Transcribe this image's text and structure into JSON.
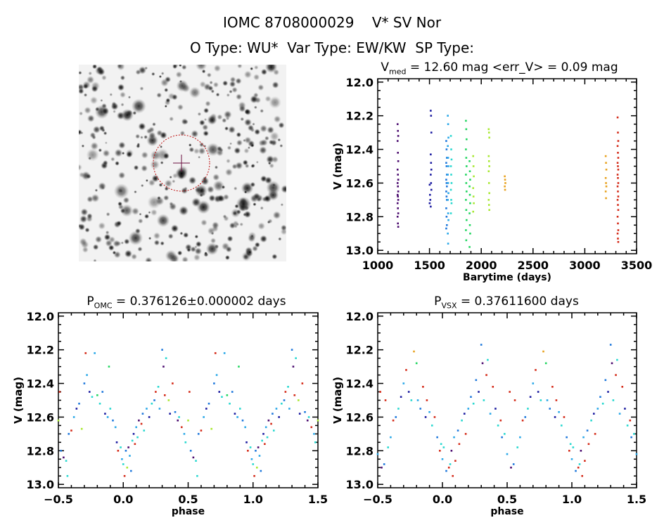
{
  "header": {
    "line1": "IOMC 8708000029    V* SV Nor",
    "line2": "O Type: WU*  Var Type: EW/KW  SP Type:"
  },
  "colors": [
    "#4a0a6e",
    "#1a1aa0",
    "#1f78dc",
    "#2aa8e8",
    "#28d8d0",
    "#22d660",
    "#a8e832",
    "#e8a21e",
    "#d42a18"
  ],
  "chart_data": [
    {
      "type": "image",
      "panel": "finding-chart",
      "marker": "circle-and-cross",
      "marker_color": "#c01010"
    },
    {
      "type": "scatter",
      "title_main": "V",
      "title_sub": "med",
      "title_rest": " = 12.60 mag <err_V> = 0.09 mag",
      "xlabel": "Barytime (days)",
      "ylabel": "V (mag)",
      "xlim": [
        1000,
        3500
      ],
      "ylim": [
        13.02,
        11.98
      ],
      "xticks": [
        1000,
        1500,
        2000,
        2500,
        3000,
        3500
      ],
      "xtick_labels": [
        "1000",
        "1500",
        "2000",
        "2500",
        "3000",
        "3500"
      ],
      "yticks": [
        12.0,
        12.2,
        12.4,
        12.6,
        12.8,
        13.0
      ],
      "ytick_labels": [
        "12.0",
        "12.2",
        "12.4",
        "12.6",
        "12.8",
        "13.0"
      ],
      "groups": [
        {
          "t": 1195,
          "c": 0,
          "v": [
            12.25,
            12.29,
            12.32,
            12.35,
            12.42,
            12.47,
            12.52,
            12.55,
            12.58,
            12.6,
            12.62,
            12.65,
            12.67,
            12.68,
            12.7,
            12.72,
            12.75,
            12.78,
            12.8,
            12.84,
            12.86
          ]
        },
        {
          "t": 1505,
          "c": 1,
          "v": [
            12.61,
            12.67,
            12.7,
            12.72
          ]
        },
        {
          "t": 1515,
          "c": 1,
          "v": [
            12.17,
            12.2,
            12.3,
            12.43,
            12.48,
            12.52,
            12.55,
            12.6,
            12.64,
            12.74
          ]
        },
        {
          "t": 1665,
          "c": 2,
          "v": [
            12.35,
            12.4,
            12.45,
            12.48,
            12.5,
            12.55,
            12.58,
            12.6,
            12.62,
            12.65,
            12.68,
            12.7,
            12.75,
            12.8,
            12.85,
            12.87
          ]
        },
        {
          "t": 1680,
          "c": 3,
          "v": [
            12.2,
            12.25,
            12.33,
            12.38,
            12.45,
            12.5,
            12.55,
            12.6,
            12.66,
            12.7,
            12.78,
            12.82,
            12.9,
            12.96
          ]
        },
        {
          "t": 1710,
          "c": 4,
          "v": [
            12.32,
            12.4,
            12.46,
            12.5,
            12.55,
            12.6,
            12.64,
            12.7,
            12.72,
            12.78
          ]
        },
        {
          "t": 1855,
          "c": 5,
          "v": [
            12.23,
            12.28,
            12.34,
            12.4,
            12.45,
            12.5,
            12.55,
            12.6,
            12.65,
            12.7,
            12.76,
            12.82,
            12.88,
            12.94
          ]
        },
        {
          "t": 1890,
          "c": 5,
          "v": [
            12.47,
            12.53,
            12.58,
            12.62,
            12.67,
            12.72,
            12.78,
            12.85,
            12.9,
            12.98
          ]
        },
        {
          "t": 1925,
          "c": 6,
          "v": [
            12.44,
            12.5,
            12.56,
            12.63,
            12.68,
            12.72,
            12.77
          ]
        },
        {
          "t": 2075,
          "c": 6,
          "v": [
            12.28,
            12.3,
            12.33,
            12.44,
            12.47,
            12.5,
            12.53,
            12.6,
            12.66,
            12.7,
            12.73,
            12.76
          ]
        },
        {
          "t": 2230,
          "c": 7,
          "v": [
            12.56,
            12.58,
            12.6,
            12.62,
            12.64
          ]
        },
        {
          "t": 3205,
          "c": 7,
          "v": [
            12.44,
            12.48,
            12.52,
            12.57,
            12.6,
            12.62,
            12.65,
            12.69
          ]
        },
        {
          "t": 3320,
          "c": 8,
          "v": [
            12.21,
            12.3,
            12.35,
            12.38,
            12.42,
            12.45,
            12.48,
            12.5,
            12.52,
            12.55,
            12.57,
            12.6,
            12.62,
            12.65,
            12.68,
            12.7,
            12.73,
            12.76,
            12.8,
            12.84,
            12.88,
            12.9,
            12.93,
            12.95
          ]
        }
      ]
    },
    {
      "type": "scatter",
      "title_main": "P",
      "title_sub": "OMC",
      "title_rest": " = 0.376126±0.000002 days",
      "xlabel": "phase",
      "ylabel": "V (mag)",
      "xlim": [
        -0.5,
        1.5
      ],
      "ylim": [
        13.02,
        11.98
      ],
      "xticks": [
        -0.5,
        0.0,
        0.5,
        1.0,
        1.5
      ],
      "xtick_labels": [
        "−0.5",
        "0.0",
        "0.5",
        "1.0",
        "1.5"
      ],
      "yticks": [
        12.0,
        12.2,
        12.4,
        12.6,
        12.8,
        13.0
      ],
      "ytick_labels": [
        "12.0",
        "12.2",
        "12.4",
        "12.6",
        "12.8",
        "13.0"
      ],
      "points": [
        [
          0.0,
          12.88,
          4
        ],
        [
          0.01,
          12.95,
          8
        ],
        [
          0.02,
          12.8,
          2
        ],
        [
          0.03,
          12.9,
          6
        ],
        [
          0.04,
          12.78,
          0
        ],
        [
          0.05,
          12.83,
          3
        ],
        [
          0.06,
          12.92,
          2
        ],
        [
          0.07,
          12.74,
          4
        ],
        [
          0.08,
          12.7,
          1
        ],
        [
          0.09,
          12.76,
          8
        ],
        [
          0.1,
          12.66,
          3
        ],
        [
          0.11,
          12.72,
          4
        ],
        [
          0.12,
          12.62,
          0
        ],
        [
          0.14,
          12.64,
          8
        ],
        [
          0.15,
          12.58,
          2
        ],
        [
          0.16,
          12.68,
          4
        ],
        [
          0.18,
          12.55,
          3
        ],
        [
          0.2,
          12.6,
          1
        ],
        [
          0.22,
          12.52,
          4
        ],
        [
          0.24,
          12.5,
          2
        ],
        [
          0.25,
          12.45,
          8
        ],
        [
          0.27,
          12.42,
          4
        ],
        [
          0.28,
          12.55,
          3
        ],
        [
          0.3,
          12.2,
          2
        ],
        [
          0.31,
          12.3,
          0
        ],
        [
          0.32,
          12.47,
          8
        ],
        [
          0.33,
          12.25,
          4
        ],
        [
          0.35,
          12.5,
          6
        ],
        [
          0.36,
          12.58,
          1
        ],
        [
          0.38,
          12.4,
          8
        ],
        [
          0.4,
          12.57,
          2
        ],
        [
          0.42,
          12.62,
          0
        ],
        [
          0.43,
          12.6,
          4
        ],
        [
          0.45,
          12.66,
          8
        ],
        [
          0.47,
          12.7,
          3
        ],
        [
          0.48,
          12.75,
          4
        ],
        [
          0.5,
          12.62,
          6
        ],
        [
          0.51,
          12.45,
          8
        ],
        [
          0.52,
          12.8,
          2
        ],
        [
          0.54,
          12.84,
          0
        ],
        [
          0.56,
          12.86,
          4
        ],
        [
          0.57,
          12.95,
          4
        ],
        [
          0.58,
          12.7,
          2
        ],
        [
          0.6,
          12.68,
          8
        ],
        [
          0.62,
          12.6,
          3
        ],
        [
          0.64,
          12.55,
          1
        ],
        [
          0.66,
          12.52,
          2
        ],
        [
          0.68,
          12.67,
          6
        ],
        [
          0.7,
          12.4,
          2
        ],
        [
          0.71,
          12.22,
          8
        ],
        [
          0.72,
          12.35,
          3
        ],
        [
          0.74,
          12.45,
          1
        ],
        [
          0.76,
          12.48,
          4
        ],
        [
          0.78,
          12.22,
          3
        ],
        [
          0.8,
          12.47,
          5
        ],
        [
          0.82,
          12.52,
          4
        ],
        [
          0.84,
          12.45,
          2
        ],
        [
          0.86,
          12.58,
          1
        ],
        [
          0.88,
          12.6,
          3
        ],
        [
          0.89,
          12.3,
          5
        ],
        [
          0.9,
          12.55,
          4
        ],
        [
          0.92,
          12.62,
          2
        ],
        [
          0.94,
          12.66,
          3
        ],
        [
          0.95,
          12.75,
          1
        ],
        [
          0.96,
          12.8,
          8
        ],
        [
          0.98,
          12.78,
          4
        ],
        [
          0.99,
          12.85,
          3
        ]
      ]
    },
    {
      "type": "scatter",
      "title_main": "P",
      "title_sub": "VSX",
      "title_rest": " = 0.37611600 days",
      "xlabel": "phase",
      "ylabel": "V (mag)",
      "xlim": [
        -0.5,
        1.5
      ],
      "ylim": [
        13.02,
        11.98
      ],
      "xticks": [
        -0.5,
        0.0,
        0.5,
        1.0,
        1.5
      ],
      "xtick_labels": [
        "−0.5",
        "0.0",
        "0.5",
        "1.0",
        "1.5"
      ],
      "yticks": [
        12.0,
        12.2,
        12.4,
        12.6,
        12.8,
        13.0
      ],
      "ytick_labels": [
        "12.0",
        "12.2",
        "12.4",
        "12.6",
        "12.8",
        "13.0"
      ],
      "points": [
        [
          0.0,
          12.85,
          3
        ],
        [
          0.01,
          12.78,
          4
        ],
        [
          0.03,
          12.92,
          2
        ],
        [
          0.05,
          12.9,
          8
        ],
        [
          0.06,
          12.88,
          4
        ],
        [
          0.07,
          12.8,
          0
        ],
        [
          0.08,
          12.95,
          8
        ],
        [
          0.09,
          12.72,
          3
        ],
        [
          0.1,
          12.86,
          8
        ],
        [
          0.12,
          12.68,
          2
        ],
        [
          0.13,
          12.76,
          8
        ],
        [
          0.15,
          12.62,
          4
        ],
        [
          0.17,
          12.58,
          1
        ],
        [
          0.18,
          12.7,
          8
        ],
        [
          0.2,
          12.55,
          3
        ],
        [
          0.22,
          12.48,
          2
        ],
        [
          0.24,
          12.52,
          4
        ],
        [
          0.26,
          12.38,
          2
        ],
        [
          0.28,
          12.45,
          1
        ],
        [
          0.3,
          12.17,
          2
        ],
        [
          0.31,
          12.28,
          0
        ],
        [
          0.32,
          12.5,
          4
        ],
        [
          0.34,
          12.35,
          8
        ],
        [
          0.35,
          12.26,
          4
        ],
        [
          0.37,
          12.58,
          3
        ],
        [
          0.39,
          12.42,
          8
        ],
        [
          0.41,
          12.55,
          1
        ],
        [
          0.43,
          12.65,
          4
        ],
        [
          0.45,
          12.62,
          8
        ],
        [
          0.46,
          12.72,
          2
        ],
        [
          0.48,
          12.7,
          4
        ],
        [
          0.5,
          12.82,
          3
        ],
        [
          0.52,
          12.45,
          8
        ],
        [
          0.53,
          12.9,
          0
        ],
        [
          0.55,
          12.88,
          2
        ],
        [
          0.56,
          12.5,
          8
        ],
        [
          0.58,
          12.78,
          4
        ],
        [
          0.6,
          12.72,
          3
        ],
        [
          0.62,
          12.62,
          8
        ],
        [
          0.64,
          12.6,
          2
        ],
        [
          0.66,
          12.55,
          4
        ],
        [
          0.68,
          12.48,
          1
        ],
        [
          0.7,
          12.4,
          3
        ],
        [
          0.72,
          12.32,
          8
        ],
        [
          0.74,
          12.45,
          1
        ],
        [
          0.76,
          12.5,
          4
        ],
        [
          0.78,
          12.21,
          7
        ],
        [
          0.8,
          12.28,
          5
        ],
        [
          0.81,
          12.5,
          3
        ],
        [
          0.83,
          12.55,
          2
        ],
        [
          0.85,
          12.42,
          8
        ],
        [
          0.87,
          12.6,
          1
        ],
        [
          0.88,
          12.5,
          8
        ],
        [
          0.9,
          12.57,
          3
        ],
        [
          0.92,
          12.65,
          4
        ],
        [
          0.94,
          12.6,
          8
        ],
        [
          0.96,
          12.72,
          2
        ],
        [
          0.98,
          12.8,
          8
        ],
        [
          0.99,
          12.76,
          4
        ]
      ]
    }
  ]
}
